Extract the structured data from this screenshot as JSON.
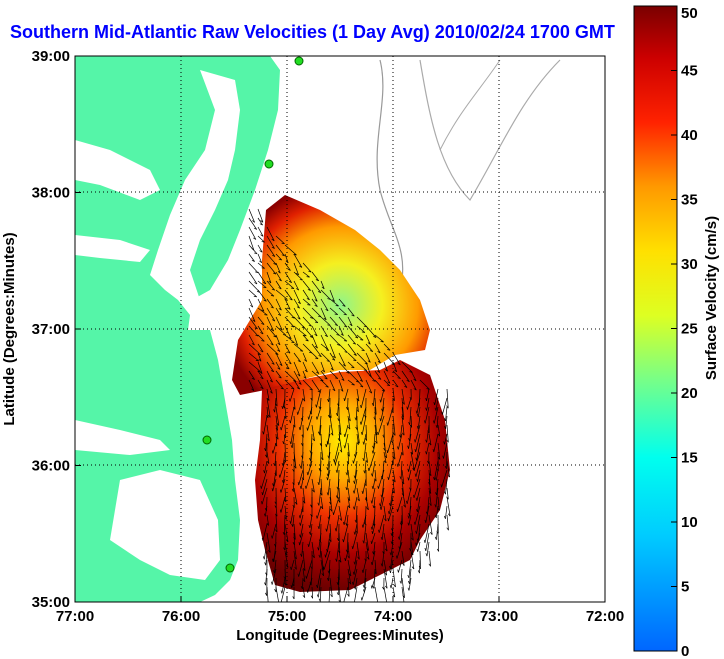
{
  "title": "Southern Mid-Atlantic Raw Velocities (1 Day Avg) 2010/02/24 1700 GMT",
  "axes": {
    "xlabel": "Longitude (Degrees:Minutes)",
    "ylabel": "Latitude (Degrees:Minutes)",
    "x_ticks": [
      "77:00",
      "76:00",
      "75:00",
      "74:00",
      "73:00",
      "72:00"
    ],
    "y_ticks": [
      "39:00",
      "38:00",
      "37:00",
      "36:00",
      "35:00"
    ],
    "x_range_deg_west": [
      77,
      72
    ],
    "y_range_deg_north": [
      35,
      39
    ],
    "grid": "dotted"
  },
  "colorbar": {
    "label": "Surface Velocity (cm/s)",
    "min": 0,
    "max": 50,
    "ticks": [
      "0",
      "5",
      "10",
      "15",
      "20",
      "25",
      "30",
      "35",
      "40",
      "45",
      "50"
    ],
    "colormap": "jet",
    "position": "right"
  },
  "colors": {
    "land": "#55f5a8",
    "ocean": "#ffffff",
    "bathymetry": "#999999",
    "title": "#0000ff",
    "stations": "#22dd22"
  },
  "chart_data": {
    "type": "heatmap",
    "title": "Southern Mid-Atlantic Raw Velocities (1 Day Avg) 2010/02/24 1700 GMT",
    "xlabel": "Longitude (Degrees:Minutes)",
    "ylabel": "Latitude (Degrees:Minutes)",
    "xlim": [
      -77,
      -72
    ],
    "ylim": [
      35,
      39
    ],
    "colorbar_range": [
      0,
      50
    ],
    "colorbar_label": "Surface Velocity (cm/s)",
    "coverage_regions": [
      {
        "name_hint": "northern",
        "speed_range_cm_s": [
          15,
          50
        ],
        "dominant_direction": "southeast"
      },
      {
        "name_hint": "southern",
        "speed_range_cm_s": [
          25,
          50
        ],
        "dominant_direction": "south"
      }
    ],
    "shore_stations_deg": [
      {
        "lon": -75.08,
        "lat": 38.95
      },
      {
        "lon": -75.2,
        "lat": 38.22
      },
      {
        "lon": -75.7,
        "lat": 36.2
      },
      {
        "lon": -75.55,
        "lat": 35.08
      }
    ]
  }
}
